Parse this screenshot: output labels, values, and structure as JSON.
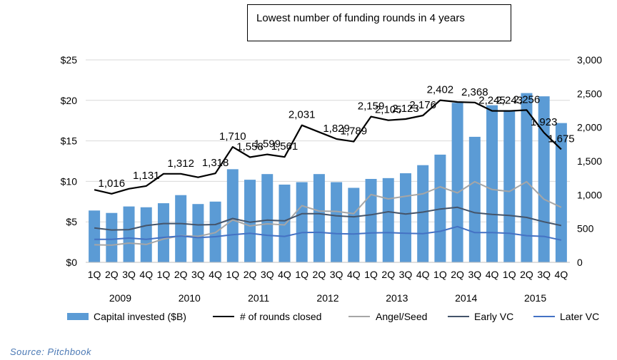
{
  "title": "Lowest number of funding rounds in 4 years",
  "source": "Source: Pitchbook",
  "colors": {
    "bars": "#5b9bd5",
    "rounds": "#000000",
    "angel": "#a6a6a6",
    "early": "#44546a",
    "later": "#4472c4",
    "grid": "#d9d9d9"
  },
  "chart_data": {
    "type": "bar",
    "categories": [
      "1Q",
      "2Q",
      "3Q",
      "4Q",
      "1Q",
      "2Q",
      "3Q",
      "4Q",
      "1Q",
      "2Q",
      "3Q",
      "4Q",
      "1Q",
      "2Q",
      "3Q",
      "4Q",
      "1Q",
      "2Q",
      "3Q",
      "4Q",
      "1Q",
      "2Q",
      "3Q",
      "4Q",
      "1Q",
      "2Q",
      "3Q",
      "4Q"
    ],
    "years": [
      "2009",
      "2010",
      "2011",
      "2012",
      "2013",
      "2014",
      "2015"
    ],
    "left_ticks": [
      "$0",
      "$5",
      "$10",
      "$15",
      "$20",
      "$25"
    ],
    "right_ticks": [
      "0",
      "500",
      "1,000",
      "1,500",
      "2,000",
      "2,500",
      "3,000"
    ],
    "ylim_left": [
      0,
      25
    ],
    "ylim_right": [
      0,
      3000
    ],
    "grid": true,
    "legend_position": "bottom",
    "series": [
      {
        "name": "Capital invested ($B)",
        "type": "bar",
        "axis": "left",
        "values": [
          6.4,
          6.1,
          6.9,
          6.8,
          7.3,
          8.3,
          7.2,
          7.5,
          11.5,
          10.2,
          10.9,
          9.6,
          9.9,
          10.9,
          9.9,
          9.2,
          10.3,
          10.4,
          11.0,
          12.0,
          13.3,
          19.7,
          15.5,
          19.4,
          18.8,
          20.9,
          20.5,
          17.2
        ]
      },
      {
        "name": "# of rounds closed",
        "type": "line",
        "axis": "right",
        "values": [
          1075,
          1016,
          1090,
          1131,
          1312,
          1312,
          1260,
          1318,
          1710,
          1558,
          1599,
          1561,
          2031,
          1930,
          1829,
          1789,
          2159,
          2105,
          2123,
          2176,
          2402,
          2376,
          2368,
          2245,
          2243,
          2256,
          1923,
          1675
        ]
      },
      {
        "name": "Angel/Seed",
        "type": "line",
        "axis": "right",
        "values": [
          260,
          255,
          285,
          265,
          345,
          395,
          385,
          440,
          630,
          540,
          570,
          555,
          840,
          760,
          755,
          720,
          1005,
          940,
          980,
          1015,
          1120,
          1030,
          1195,
          1080,
          1050,
          1195,
          935,
          815
        ]
      },
      {
        "name": "Early VC",
        "type": "line",
        "axis": "right",
        "values": [
          510,
          480,
          485,
          545,
          575,
          575,
          555,
          560,
          650,
          595,
          625,
          615,
          720,
          720,
          690,
          675,
          705,
          750,
          715,
          745,
          790,
          815,
          735,
          710,
          695,
          665,
          600,
          545
        ]
      },
      {
        "name": "Later VC",
        "type": "line",
        "axis": "right",
        "values": [
          340,
          340,
          360,
          340,
          370,
          390,
          365,
          380,
          410,
          430,
          400,
          385,
          440,
          445,
          425,
          420,
          435,
          440,
          430,
          425,
          460,
          530,
          440,
          440,
          430,
          395,
          385,
          330
        ]
      }
    ],
    "data_labels": [
      {
        "index": 1,
        "text": "1,016"
      },
      {
        "index": 3,
        "text": "1,131"
      },
      {
        "index": 5,
        "text": "1,312"
      },
      {
        "index": 7,
        "text": "1,318"
      },
      {
        "index": 8,
        "text": "1,710"
      },
      {
        "index": 9,
        "text": "1,558"
      },
      {
        "index": 10,
        "text": "1,599"
      },
      {
        "index": 11,
        "text": "1,561"
      },
      {
        "index": 12,
        "text": "2,031"
      },
      {
        "index": 14,
        "text": "1,829"
      },
      {
        "index": 15,
        "text": "1,789"
      },
      {
        "index": 16,
        "text": "2,159"
      },
      {
        "index": 17,
        "text": "2,105"
      },
      {
        "index": 18,
        "text": "2,123"
      },
      {
        "index": 19,
        "text": "2,176"
      },
      {
        "index": 20,
        "text": "2,402"
      },
      {
        "index": 22,
        "text": "2,368"
      },
      {
        "index": 23,
        "text": "2,245"
      },
      {
        "index": 24,
        "text": "2,243"
      },
      {
        "index": 25,
        "text": "2,256"
      },
      {
        "index": 26,
        "text": "1,923"
      },
      {
        "index": 27,
        "text": "1,675"
      }
    ]
  }
}
